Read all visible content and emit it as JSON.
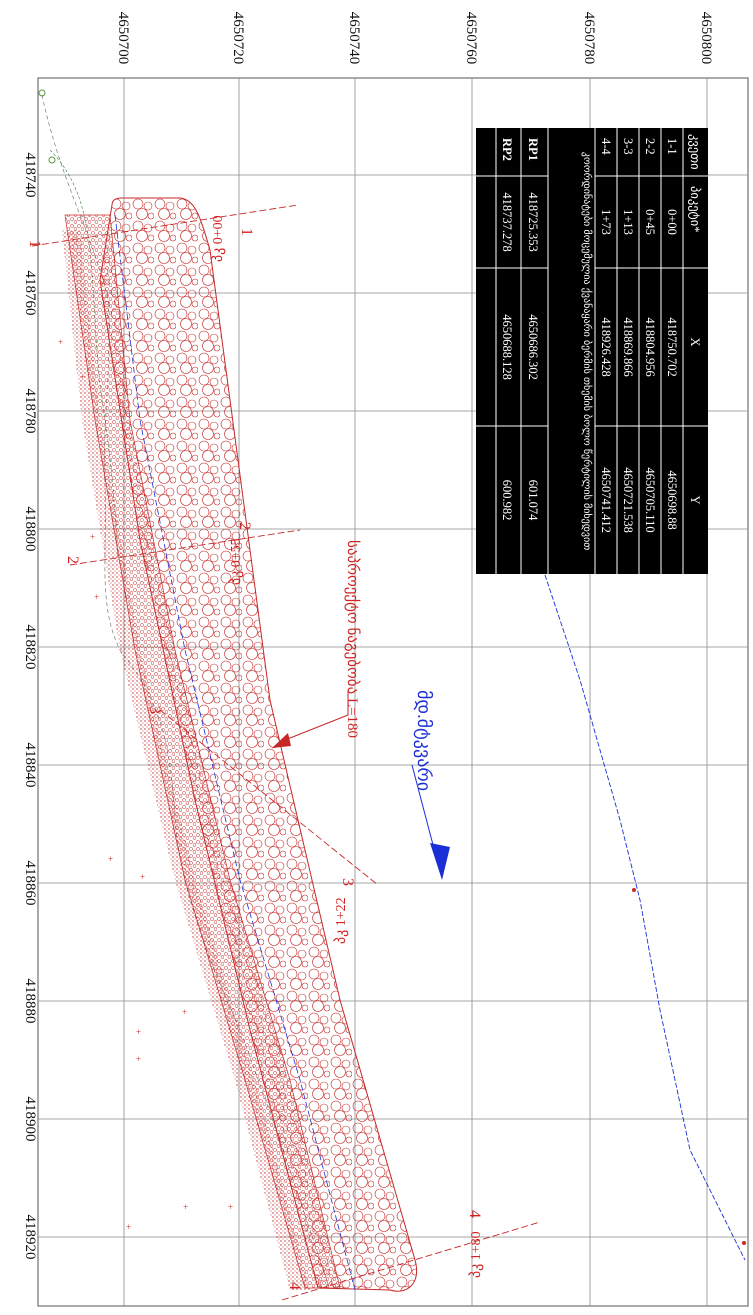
{
  "grid": {
    "x_labels": [
      "418740",
      "418760",
      "418780",
      "418800",
      "418820",
      "418840",
      "418860",
      "418880",
      "418900",
      "418920"
    ],
    "y_labels": [
      "4650700",
      "4650720",
      "4650740",
      "4650760",
      "4650780",
      "4650800"
    ]
  },
  "table": {
    "headers": [
      "კვეთი",
      "პიკეტი*",
      "X",
      "Y"
    ],
    "rows": [
      [
        "1-1",
        "0+00",
        "418750.702",
        "4650698.88"
      ],
      [
        "2-2",
        "0+45",
        "418804.956",
        "4650705.110"
      ],
      [
        "3-3",
        "1+13",
        "418869.866",
        "4650721.538"
      ],
      [
        "4-4",
        "1+73",
        "418926.428",
        "4650741.412"
      ]
    ],
    "note": "კოორდინატები მოცემულია ქვანაყარი ბერმის თხემის ბოლო წერტილის მიხედვით",
    "rp_rows": [
      [
        "RP1",
        "418725.353",
        "4650686.302",
        "601.074"
      ],
      [
        "RP2",
        "418737.278",
        "4650688.128",
        "600.982"
      ]
    ]
  },
  "labels": {
    "design_label": "საპროექტო ნაგებობა L=180",
    "flow_label": "მდ.მტკვარი",
    "pk1": "პკ 0+00",
    "pk2": "პკ 0+55",
    "pk3": "პკ 1+22",
    "pk4": "პკ 1+80",
    "sec1": "1",
    "sec2": "2",
    "sec3": "3",
    "sec4": "4"
  },
  "colors": {
    "structure": "#c62828",
    "flow": "#1a2fd6",
    "grid": "#8a8a8a",
    "table_bg": "#000000"
  }
}
